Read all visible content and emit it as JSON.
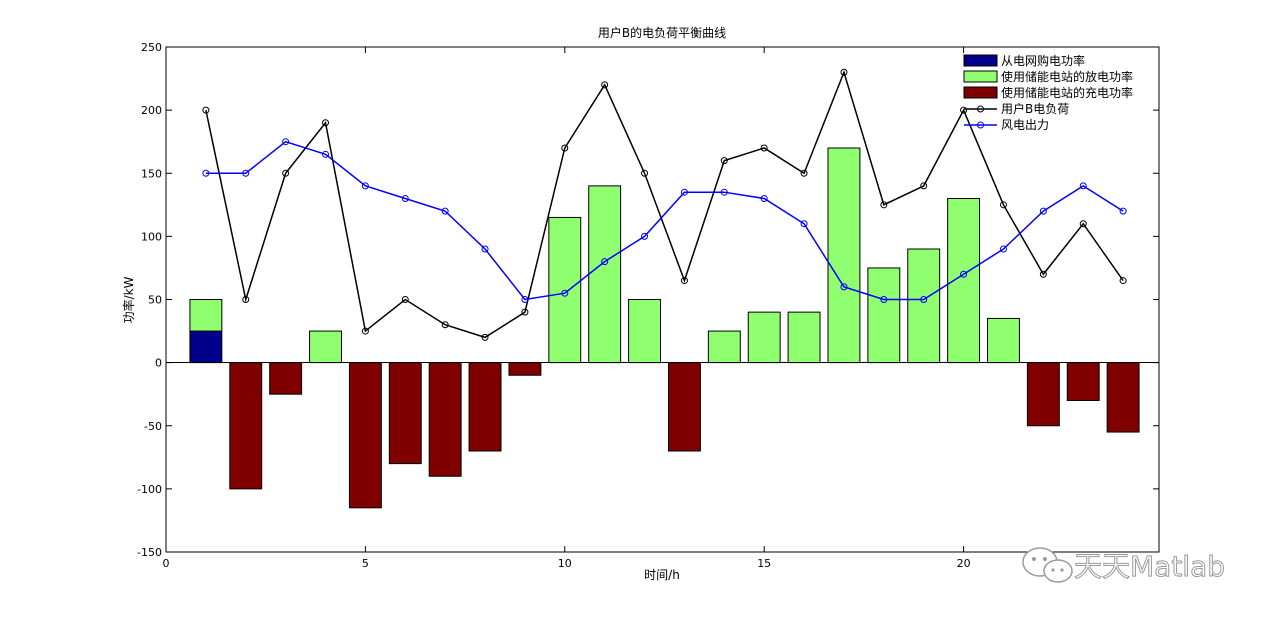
{
  "chart_data": {
    "type": "bar",
    "title": "用户B的电负荷平衡曲线",
    "xlabel": "时间/h",
    "ylabel": "功率/kW",
    "xlim": [
      0,
      24.9
    ],
    "ylim": [
      -150,
      250
    ],
    "xticks": [
      0,
      5,
      10,
      15,
      20
    ],
    "yticks": [
      -150,
      -100,
      -50,
      0,
      50,
      100,
      150,
      200,
      250
    ],
    "grid": false,
    "legend_position": "top-right",
    "x": [
      1,
      2,
      3,
      4,
      5,
      6,
      7,
      8,
      9,
      10,
      11,
      12,
      13,
      14,
      15,
      16,
      17,
      18,
      19,
      20,
      21,
      22,
      23,
      24
    ],
    "bar_series": [
      {
        "name": "从电网购电功率",
        "color": "#00008b",
        "values": [
          25,
          0,
          0,
          0,
          0,
          0,
          0,
          0,
          0,
          0,
          0,
          0,
          0,
          0,
          0,
          0,
          0,
          0,
          0,
          0,
          0,
          0,
          0,
          0
        ]
      },
      {
        "name": "使用储能电站的放电功率",
        "color": "#8fff6f",
        "values": [
          25,
          0,
          0,
          25,
          0,
          0,
          0,
          0,
          0,
          115,
          140,
          50,
          0,
          25,
          40,
          40,
          170,
          75,
          90,
          130,
          35,
          0,
          0,
          0
        ]
      },
      {
        "name": "使用储能电站的充电功率",
        "color": "#800000",
        "values": [
          0,
          -100,
          -25,
          0,
          -115,
          -80,
          -90,
          -70,
          -10,
          0,
          0,
          0,
          -70,
          0,
          0,
          0,
          0,
          0,
          0,
          0,
          0,
          -50,
          -30,
          -55
        ]
      }
    ],
    "line_series": [
      {
        "name": "用户B电负荷",
        "color": "#000000",
        "values": [
          200,
          50,
          150,
          190,
          25,
          50,
          30,
          20,
          40,
          170,
          220,
          150,
          65,
          160,
          170,
          150,
          230,
          125,
          140,
          200,
          125,
          70,
          110,
          65
        ]
      },
      {
        "name": "风电出力",
        "color": "#0000ff",
        "values": [
          150,
          150,
          175,
          165,
          140,
          130,
          120,
          90,
          50,
          55,
          80,
          100,
          135,
          135,
          130,
          110,
          60,
          50,
          50,
          70,
          90,
          120,
          140,
          120
        ]
      }
    ]
  },
  "watermark": {
    "text": "天天Matlab"
  }
}
